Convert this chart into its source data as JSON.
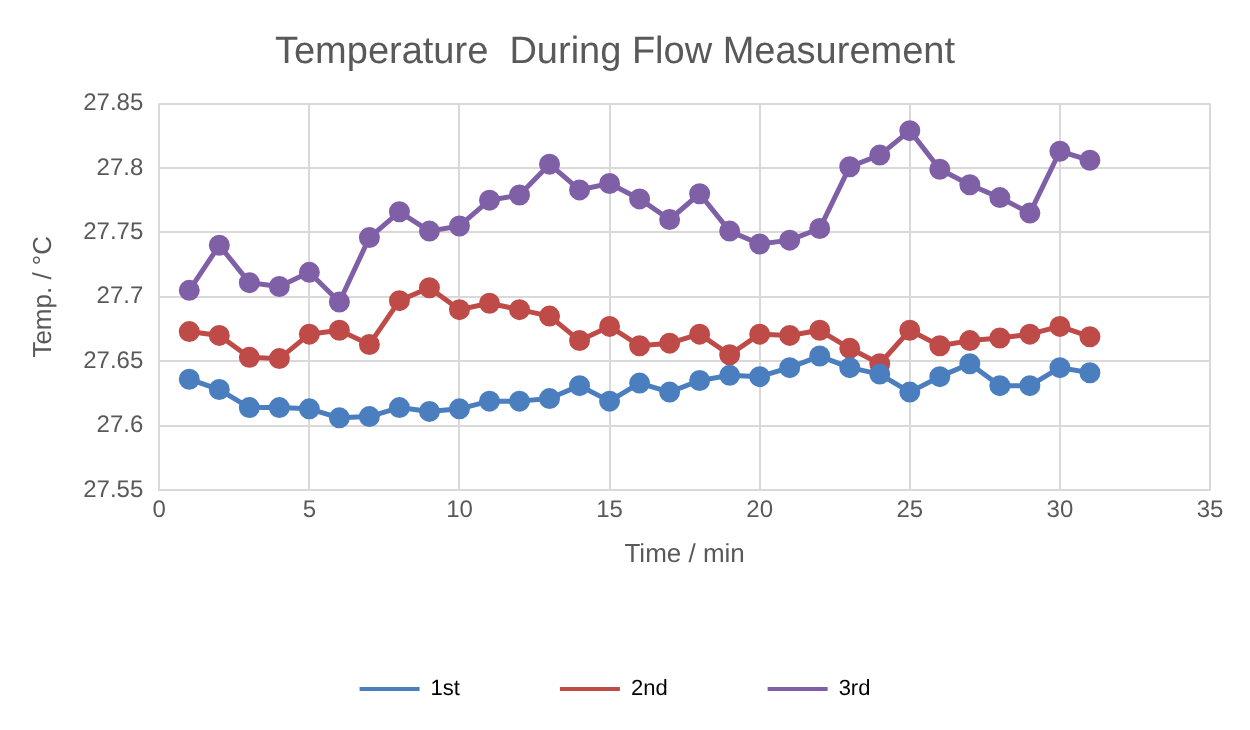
{
  "chart_data": {
    "type": "line",
    "title": "Temperature  During Flow Measurement",
    "xlabel": "Time / min",
    "ylabel": "Temp. / °C",
    "x": [
      1,
      2,
      3,
      4,
      5,
      6,
      7,
      8,
      9,
      10,
      11,
      12,
      13,
      14,
      15,
      16,
      17,
      18,
      19,
      20,
      21,
      22,
      23,
      24,
      25,
      26,
      27,
      28,
      29,
      30,
      31
    ],
    "series": [
      {
        "name": "1st",
        "color": "#4a7ebf",
        "values": [
          27.636,
          27.628,
          27.614,
          27.614,
          27.613,
          27.606,
          27.607,
          27.614,
          27.611,
          27.613,
          27.619,
          27.619,
          27.621,
          27.631,
          27.619,
          27.633,
          27.626,
          27.635,
          27.639,
          27.638,
          27.645,
          27.654,
          27.645,
          27.64,
          27.626,
          27.638,
          27.648,
          27.631,
          27.631,
          27.645,
          27.641
        ]
      },
      {
        "name": "2nd",
        "color": "#be4b48",
        "values": [
          27.673,
          27.67,
          27.653,
          27.652,
          27.671,
          27.674,
          27.663,
          27.697,
          27.707,
          27.69,
          27.695,
          27.69,
          27.685,
          27.666,
          27.677,
          27.662,
          27.664,
          27.671,
          27.655,
          27.671,
          27.67,
          27.674,
          27.66,
          27.648,
          27.674,
          27.662,
          27.666,
          27.668,
          27.671,
          27.677,
          27.669
        ]
      },
      {
        "name": "3rd",
        "color": "#7f5fa5",
        "values": [
          27.705,
          27.74,
          27.711,
          27.708,
          27.719,
          27.696,
          27.746,
          27.766,
          27.751,
          27.755,
          27.775,
          27.779,
          27.803,
          27.783,
          27.788,
          27.776,
          27.76,
          27.78,
          27.751,
          27.741,
          27.744,
          27.753,
          27.801,
          27.81,
          27.829,
          27.799,
          27.787,
          27.777,
          27.765,
          27.813,
          27.806
        ]
      }
    ],
    "xlim": [
      0,
      35
    ],
    "xticks": [
      0,
      5,
      10,
      15,
      20,
      25,
      30,
      35
    ],
    "ylim": [
      27.55,
      27.85
    ],
    "yticks": [
      {
        "value": 27.55,
        "label": "27.55"
      },
      {
        "value": 27.6,
        "label": "27.6"
      },
      {
        "value": 27.65,
        "label": "27.65"
      },
      {
        "value": 27.7,
        "label": "27.7"
      },
      {
        "value": 27.75,
        "label": "27.75"
      },
      {
        "value": 27.8,
        "label": "27.8"
      },
      {
        "value": 27.85,
        "label": "27.85"
      }
    ],
    "grid": true,
    "legend": "bottom",
    "marker": "circle",
    "line_style": "solid"
  }
}
